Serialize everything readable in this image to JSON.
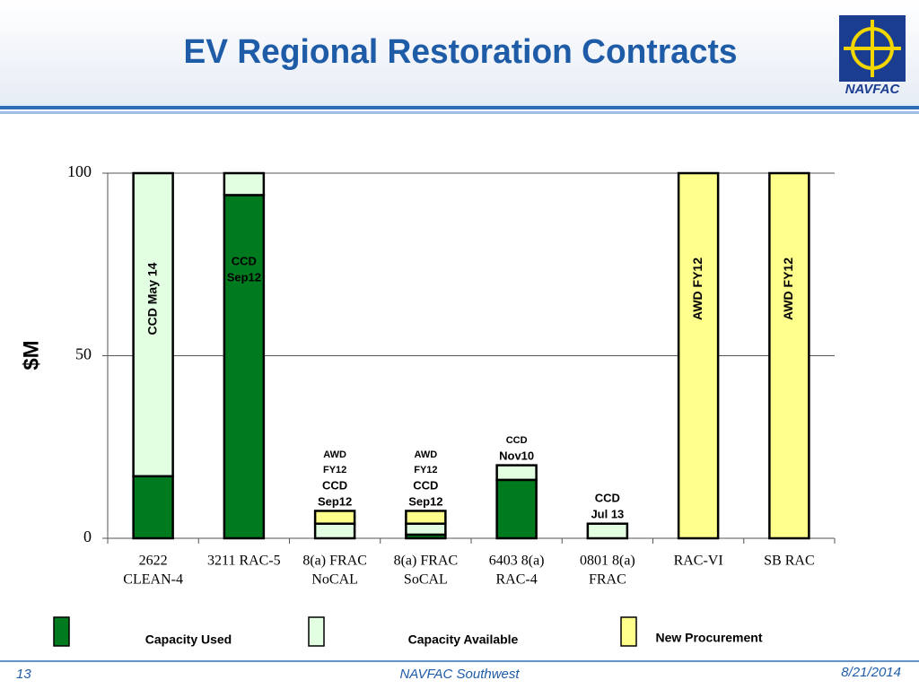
{
  "chart_data": {
    "type": "stacked-bar",
    "title": "EV Regional Restoration Contracts",
    "y_label": "$M",
    "categories": [
      [
        "2622",
        "CLEAN-4"
      ],
      [
        "3211 RAC-5"
      ],
      [
        "8(a) FRAC",
        "NoCAL"
      ],
      [
        "8(a) FRAC",
        "SoCAL"
      ],
      [
        "6403 8(a)",
        "RAC-4"
      ],
      [
        "0801 8(a)",
        "FRAC"
      ],
      [
        "RAC-VI"
      ],
      [
        "SB RAC"
      ]
    ],
    "series": [
      {
        "name": "Capacity Used",
        "color": "#007a1e",
        "values": [
          17,
          94,
          0,
          1,
          16,
          0,
          0,
          0
        ]
      },
      {
        "name": "Capacity Available",
        "color": "#e2ffe2",
        "values": [
          83,
          6,
          4,
          3,
          4,
          4,
          0,
          0
        ]
      },
      {
        "name": "New Procurement",
        "color": "#ffff8c",
        "values": [
          0,
          0,
          3.5,
          3.5,
          0,
          0,
          100,
          100
        ]
      }
    ],
    "annotations": [
      "CCD May 14",
      [
        "CCD",
        "Sep12"
      ],
      [
        "AWD",
        "FY12",
        "CCD",
        "Sep12"
      ],
      [
        "AWD",
        "FY12",
        "CCD",
        "Sep12"
      ],
      [
        "CCD",
        "Nov10"
      ],
      [
        "CCD",
        "Jul 13"
      ],
      "AWD FY12",
      "AWD FY12"
    ],
    "ylim": [
      0,
      100
    ],
    "yticks": [
      0,
      50,
      100
    ],
    "grid": true
  },
  "footer": {
    "page": "13",
    "org": "NAVFAC Southwest",
    "date": "8/21/2014"
  },
  "logo": {
    "text": "NAVFAC"
  }
}
